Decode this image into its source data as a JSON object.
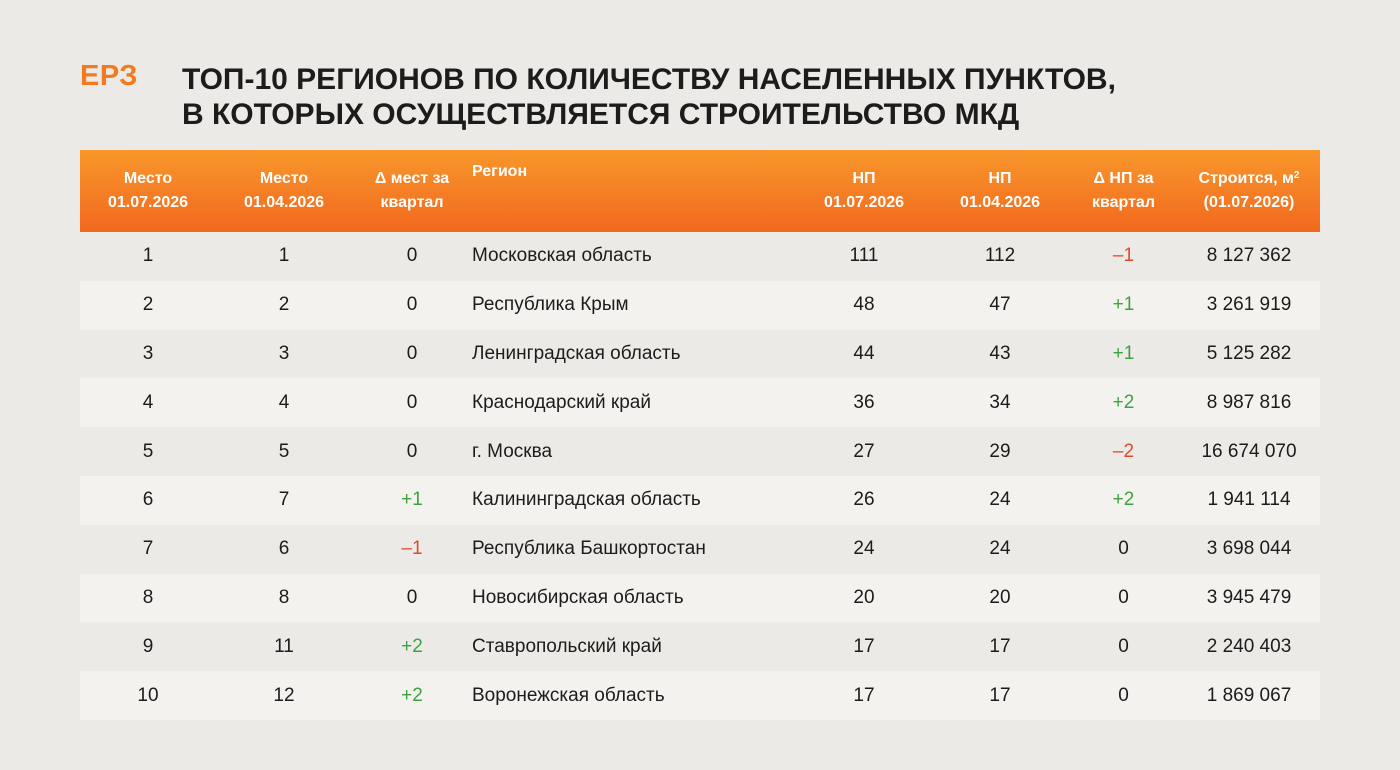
{
  "logo": "ЕРЗ",
  "title": {
    "line1": "ТОП-10 РЕГИОНОВ ПО КОЛИЧЕСТВУ НАСЕЛЕННЫХ ПУНКТОВ,",
    "line2": "В КОТОРЫХ ОСУЩЕСТВЛЯЕТСЯ СТРОИТЕЛЬСТВО МКД"
  },
  "headers": {
    "place_now": [
      "Место",
      "01.07.2026"
    ],
    "place_prev": [
      "Место",
      "01.04.2026"
    ],
    "place_delta": [
      "Δ мест за",
      "квартал"
    ],
    "region": "Регион",
    "np_now": [
      "НП",
      "01.07.2026"
    ],
    "np_prev": [
      "НП",
      "01.04.2026"
    ],
    "np_delta": [
      "Δ НП за",
      "квартал"
    ],
    "built": [
      "Строится, м",
      "2",
      "(01.07.2026)"
    ]
  },
  "rows": [
    {
      "place_now": "1",
      "place_prev": "1",
      "place_delta": "0",
      "region": "Московская область",
      "np_now": "111",
      "np_prev": "112",
      "np_delta": "–1",
      "built": "8 127 362"
    },
    {
      "place_now": "2",
      "place_prev": "2",
      "place_delta": "0",
      "region": "Республика Крым",
      "np_now": "48",
      "np_prev": "47",
      "np_delta": "+1",
      "built": "3 261 919"
    },
    {
      "place_now": "3",
      "place_prev": "3",
      "place_delta": "0",
      "region": "Ленинградская область",
      "np_now": "44",
      "np_prev": "43",
      "np_delta": "+1",
      "built": "5 125 282"
    },
    {
      "place_now": "4",
      "place_prev": "4",
      "place_delta": "0",
      "region": "Краснодарский край",
      "np_now": "36",
      "np_prev": "34",
      "np_delta": "+2",
      "built": "8 987 816"
    },
    {
      "place_now": "5",
      "place_prev": "5",
      "place_delta": "0",
      "region": "г. Москва",
      "np_now": "27",
      "np_prev": "29",
      "np_delta": "–2",
      "built": "16 674 070"
    },
    {
      "place_now": "6",
      "place_prev": "7",
      "place_delta": "+1",
      "region": "Калининградская область",
      "np_now": "26",
      "np_prev": "24",
      "np_delta": "+2",
      "built": "1 941 114"
    },
    {
      "place_now": "7",
      "place_prev": "6",
      "place_delta": "–1",
      "region": "Республика Башкортостан",
      "np_now": "24",
      "np_prev": "24",
      "np_delta": "0",
      "built": "3 698 044"
    },
    {
      "place_now": "8",
      "place_prev": "8",
      "place_delta": "0",
      "region": "Новосибирская область",
      "np_now": "20",
      "np_prev": "20",
      "np_delta": "0",
      "built": "3 945 479"
    },
    {
      "place_now": "9",
      "place_prev": "11",
      "place_delta": "+2",
      "region": "Ставропольский край",
      "np_now": "17",
      "np_prev": "17",
      "np_delta": "0",
      "built": "2 240 403"
    },
    {
      "place_now": "10",
      "place_prev": "12",
      "place_delta": "+2",
      "region": "Воронежская область",
      "np_now": "17",
      "np_prev": "17",
      "np_delta": "0",
      "built": "1 869 067"
    }
  ],
  "colors": {
    "accent": "#f47a20",
    "header_top": "#f8972b",
    "header_bottom": "#f2681f",
    "positive": "#3ea33f",
    "negative": "#e04a2c",
    "background": "#ebeae6",
    "stripe": "#f3f2ef"
  }
}
